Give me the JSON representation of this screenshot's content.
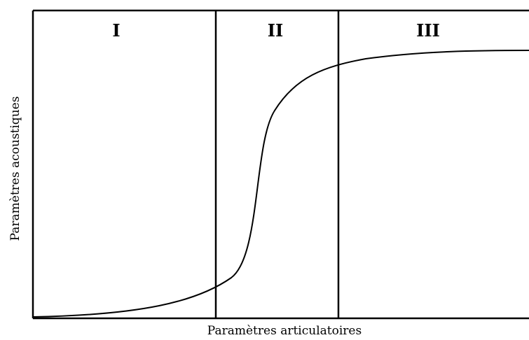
{
  "regions": [
    "I",
    "II",
    "III"
  ],
  "axes": {
    "x_label": "Paramètres articulatoires",
    "y_label": "Paramètres acoustiques"
  }
}
